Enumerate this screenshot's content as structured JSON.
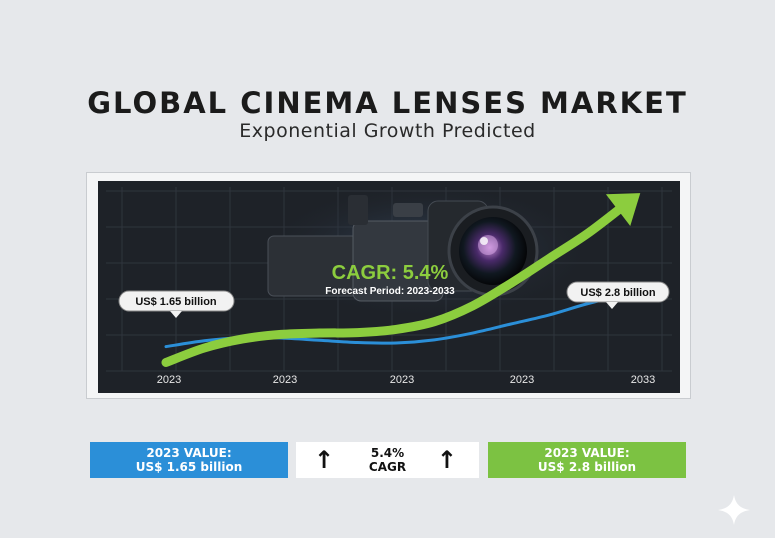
{
  "header": {
    "title": "GLOBAL CINEMA LENSES MARKET",
    "subtitle": "Exponential Growth Predicted"
  },
  "chart_data": {
    "type": "line",
    "x_tick_labels": [
      "2023",
      "2023",
      "2023",
      "2023",
      "2033"
    ],
    "series": [
      {
        "values": [
          1.65,
          1.78,
          1.85,
          1.84,
          1.79,
          1.74,
          1.73,
          1.8,
          1.95,
          2.15,
          2.35,
          2.6,
          2.8
        ],
        "color": "#2b8fd8"
      },
      {
        "values": [
          1.3,
          1.62,
          1.82,
          1.92,
          1.95,
          1.96,
          2.03,
          2.2,
          2.55,
          3.05,
          3.6,
          4.15,
          4.8
        ],
        "color": "#8ccd3e"
      }
    ],
    "annotations": {
      "cagr": "CAGR: 5.4%",
      "forecast_period": "Forecast Period: 2023-2033",
      "start_value": "US$ 1.65 billion",
      "end_value": "US$ 2.8 billion"
    },
    "grid": true,
    "ylim": [
      1.2,
      5.0
    ]
  },
  "cards": {
    "left_line1": "2023 VALUE:",
    "left_line2": "US$ 1.65 billion",
    "middle_line1": "5.4%",
    "middle_line2": "CAGR",
    "middle_arrow": "↑",
    "right_line1": "2023 VALUE:",
    "right_line2": "US$ 2.8 billion"
  },
  "colors": {
    "blue": "#2b8fd8",
    "green": "#7cc242",
    "chart_bg": "#1e2228"
  },
  "icons": {
    "corner": "sparkle-icon",
    "background": "cinema-camera-icon"
  }
}
